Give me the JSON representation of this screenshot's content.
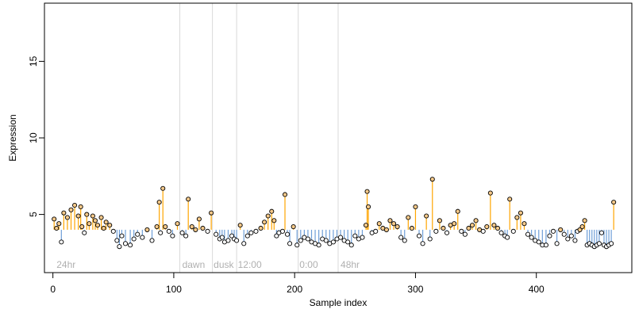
{
  "chart_data": {
    "type": "scatter",
    "title": "",
    "xlabel": "Sample index",
    "ylabel": "Expression",
    "xlim": [
      -7,
      479
    ],
    "ylim": [
      1.2,
      18.8
    ],
    "xticks": [
      0,
      100,
      200,
      300,
      400
    ],
    "yticks": [
      5,
      10,
      15
    ],
    "grid": false,
    "phase_lines_x": [
      105,
      132,
      152,
      203,
      236
    ],
    "phase_labels": [
      {
        "text": "24hr",
        "x": 3
      },
      {
        "text": "dawn",
        "x": 107
      },
      {
        "text": "dusk",
        "x": 133
      },
      {
        "text": "12:00",
        "x": 153
      },
      {
        "text": "0:00",
        "x": 204
      },
      {
        "text": "48hr",
        "x": 238
      }
    ],
    "baseline": 4.0,
    "colors": {
      "above": "#FFA500",
      "below": "#6F9FD8",
      "marker_edge": "#000000",
      "phase_line": "#D9D9D9",
      "phase_text": "#B0B0B0"
    },
    "series": [
      {
        "x": [
          1,
          3,
          5,
          7,
          9,
          12,
          15,
          18,
          21,
          23,
          24,
          26,
          28,
          30,
          33,
          35,
          37,
          40,
          42,
          44,
          47,
          50,
          53,
          55,
          57,
          60,
          64,
          67,
          70,
          74,
          78,
          82,
          86,
          88,
          89,
          91,
          93,
          96,
          99,
          103,
          107,
          110,
          112,
          115,
          118,
          121,
          124,
          128,
          131,
          135,
          138,
          140,
          142,
          145,
          148,
          150,
          152,
          155,
          158,
          161,
          164,
          168,
          172,
          175,
          178,
          181,
          183,
          185,
          187,
          190,
          192,
          194,
          196,
          199,
          202,
          205,
          208,
          211,
          214,
          217,
          220,
          223,
          226,
          229,
          232,
          235,
          238,
          241,
          244,
          247,
          250,
          253,
          256,
          259,
          260,
          261,
          264,
          267,
          270,
          273,
          276,
          279,
          282,
          285,
          288,
          291,
          294,
          297,
          300,
          303,
          306,
          309,
          312,
          314,
          317,
          320,
          323,
          326,
          329,
          332,
          335,
          338,
          341,
          344,
          347,
          350,
          353,
          356,
          359,
          362,
          365,
          368,
          371,
          374,
          376,
          378,
          381,
          384,
          387,
          390,
          393,
          396,
          399,
          402,
          405,
          408,
          411,
          414,
          417,
          420,
          423,
          426,
          429,
          432,
          434,
          436,
          438,
          440,
          442,
          444,
          446,
          448,
          450,
          452,
          454,
          456,
          458,
          460,
          462,
          464
        ],
        "y": [
          4.7,
          4.1,
          4.4,
          3.2,
          5.1,
          4.8,
          5.3,
          5.6,
          4.9,
          5.5,
          4.2,
          3.8,
          5.0,
          4.4,
          4.9,
          4.6,
          4.3,
          4.8,
          4.1,
          4.5,
          4.3,
          3.9,
          3.3,
          2.9,
          3.6,
          3.1,
          3.0,
          3.4,
          3.7,
          3.5,
          4.0,
          3.3,
          4.2,
          5.8,
          3.8,
          6.7,
          4.2,
          3.9,
          3.6,
          4.4,
          3.8,
          3.6,
          6.0,
          4.2,
          4.0,
          4.7,
          4.1,
          3.9,
          5.1,
          3.7,
          3.4,
          3.5,
          3.2,
          3.3,
          3.6,
          3.4,
          3.3,
          4.3,
          3.1,
          3.6,
          3.8,
          3.9,
          4.1,
          4.5,
          4.9,
          5.2,
          4.6,
          3.6,
          3.8,
          3.9,
          6.3,
          3.7,
          3.1,
          4.2,
          3.0,
          3.3,
          3.5,
          3.4,
          3.2,
          3.1,
          3.0,
          3.4,
          3.3,
          3.1,
          3.2,
          3.4,
          3.5,
          3.3,
          3.2,
          3.0,
          3.6,
          3.4,
          3.5,
          4.3,
          6.5,
          5.5,
          3.8,
          3.9,
          4.4,
          4.1,
          4.0,
          4.6,
          4.4,
          4.2,
          3.5,
          3.3,
          4.8,
          4.1,
          5.5,
          3.6,
          3.1,
          4.9,
          3.4,
          7.3,
          3.9,
          4.6,
          4.1,
          3.8,
          4.3,
          4.4,
          5.2,
          3.9,
          3.7,
          4.1,
          4.3,
          4.6,
          4.0,
          3.9,
          4.2,
          6.4,
          4.3,
          4.1,
          3.8,
          3.6,
          3.5,
          6.0,
          3.9,
          4.8,
          5.1,
          4.4,
          3.7,
          3.5,
          3.3,
          3.2,
          3.0,
          3.0,
          3.6,
          3.9,
          3.1,
          4.0,
          3.7,
          3.4,
          3.6,
          3.3,
          3.9,
          4.0,
          4.2,
          4.6,
          3.0,
          3.1,
          3.0,
          2.9,
          3.0,
          3.1,
          3.8,
          3.0,
          2.9,
          3.0,
          3.1,
          5.8
        ]
      }
    ]
  }
}
